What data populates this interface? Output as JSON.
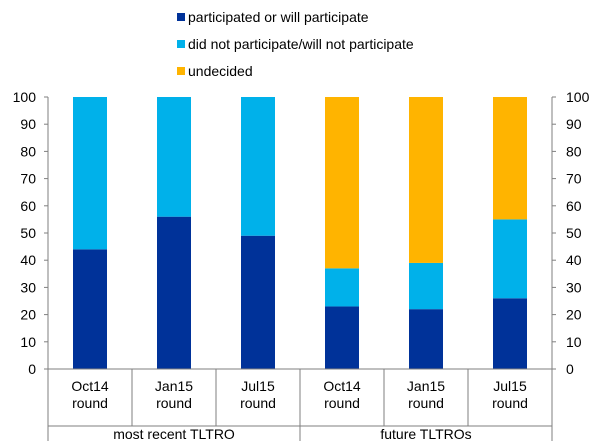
{
  "chart_data": {
    "type": "bar",
    "stacked": true,
    "categories": [
      [
        "Oct14",
        "round"
      ],
      [
        "Jan15",
        "round"
      ],
      [
        "Jul15",
        "round"
      ],
      [
        "Oct14",
        "round"
      ],
      [
        "Jan15",
        "round"
      ],
      [
        "Jul15",
        "round"
      ]
    ],
    "groups": [
      {
        "label": "most recent TLTRO",
        "start": 0,
        "end": 3
      },
      {
        "label": "future TLTROs",
        "start": 3,
        "end": 6
      }
    ],
    "series": [
      {
        "name": "participated or will participate",
        "color": "#003299",
        "values": [
          44,
          56,
          49,
          23,
          22,
          26
        ]
      },
      {
        "name": "did not participate/will not participate",
        "color": "#00b1ea",
        "values": [
          56,
          44,
          51,
          14,
          17,
          29
        ]
      },
      {
        "name": "undecided",
        "color": "#ffb400",
        "values": [
          0,
          0,
          0,
          63,
          61,
          45
        ]
      }
    ],
    "ylim": [
      0,
      100
    ],
    "yticks": [
      "0",
      "10",
      "20",
      "30",
      "40",
      "50",
      "60",
      "70",
      "80",
      "90",
      "100"
    ],
    "y2ticks": [
      "0",
      "10",
      "20",
      "30",
      "40",
      "50",
      "60",
      "70",
      "80",
      "90",
      "100"
    ],
    "legend_position": "top",
    "grid": false
  }
}
